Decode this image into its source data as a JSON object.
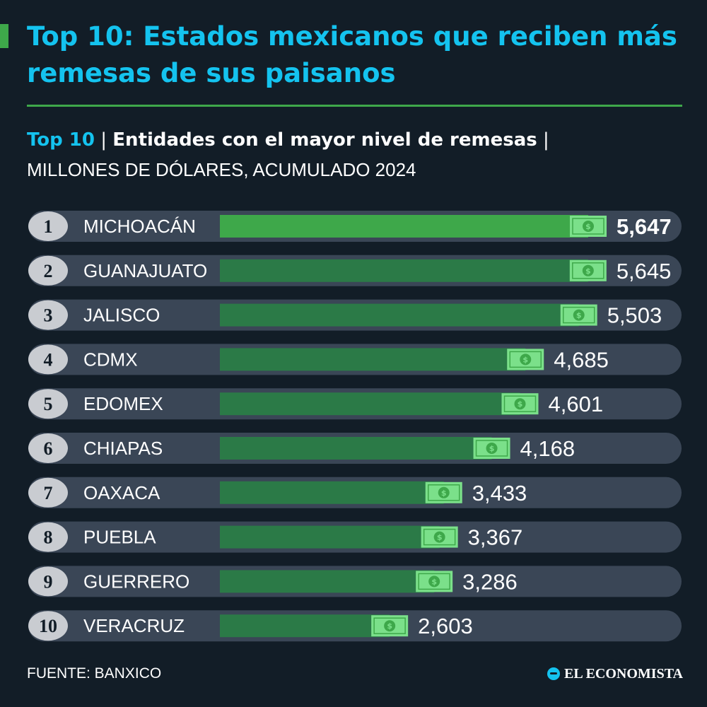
{
  "header": {
    "title": "Top 10: Estados mexicanos que reciben más remesas de sus paisanos",
    "subtitle_highlight": "Top 10",
    "subtitle_sep1": " | ",
    "subtitle_main": "Entidades con el mayor nivel de remesas",
    "subtitle_sep2": " |",
    "units": "MILLONES DE DÓLARES, ACUMULADO 2024"
  },
  "footer": {
    "source": "FUENTE: BANXICO",
    "brand": "EL ECONOMISTA"
  },
  "colors": {
    "background": "#121d27",
    "accent_blue": "#14c3ef",
    "accent_green": "#3ea84a",
    "bar_top": "#3ea84a",
    "bar": "#2b7a47",
    "row_bg": "#3a4656",
    "badge": "#c9ccd1",
    "money": "#7be08a"
  },
  "chart_data": {
    "type": "bar",
    "orientation": "horizontal",
    "ranks": [
      "1",
      "2",
      "3",
      "4",
      "5",
      "6",
      "7",
      "8",
      "9",
      "10"
    ],
    "categories": [
      "MICHOACÁN",
      "GUANAJUATO",
      "JALISCO",
      "CDMX",
      "EDOMEX",
      "CHIAPAS",
      "OAXACA",
      "PUEBLA",
      "GUERRERO",
      "VERACRUZ"
    ],
    "values": [
      5647,
      5645,
      5503,
      4685,
      4601,
      4168,
      3433,
      3367,
      3286,
      2603
    ],
    "value_labels": [
      "5,647",
      "5,645",
      "5,503",
      "4,685",
      "4,601",
      "4,168",
      "3,433",
      "3,367",
      "3,286",
      "2,603"
    ],
    "icon": "dollar-bill-icon"
  }
}
